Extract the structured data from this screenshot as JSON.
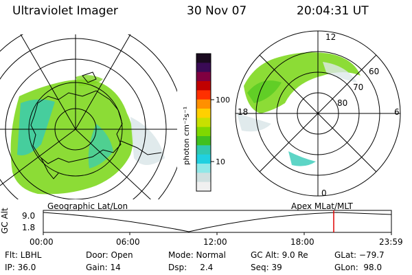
{
  "header": {
    "instrument": "Ultraviolet Imager",
    "date": "30 Nov 07",
    "time": "20:04:31 UT"
  },
  "colorbar": {
    "unit_label": "photon cm⁻²s⁻¹",
    "ticks": [
      "100",
      "10"
    ],
    "colors": [
      "#1a0a1f",
      "#3a0a55",
      "#800040",
      "#c00000",
      "#ff3000",
      "#ff9000",
      "#ffd000",
      "#c8e000",
      "#80d800",
      "#40c020",
      "#30c8b0",
      "#20d0e0",
      "#90e8e8",
      "#d0e0e0",
      "#f0f0f0"
    ]
  },
  "left_panel": {
    "label": "Geographic Lat/Lon"
  },
  "right_panel": {
    "label": "Apex MLat/MLT",
    "mlt_labels": {
      "top": "12",
      "left": "18",
      "right": "6",
      "bottom": "0"
    },
    "mlat_labels": [
      "60",
      "70",
      "80"
    ]
  },
  "altitude_plot": {
    "ylabel": "GC Alt",
    "yticks": [
      "9.0",
      "1.8"
    ],
    "xticks": [
      "00:00",
      "06:00",
      "12:00",
      "18:00",
      "23:59"
    ],
    "marker_color": "#e00000"
  },
  "info": {
    "row1": {
      "filter": "Flt: LBHL",
      "door": "Door: Open",
      "mode": "Mode: Normal",
      "gc_alt": "GC Alt: 9.0 Re",
      "glat": "GLat: −79.7"
    },
    "row2": {
      "ip": "IP: 36.0",
      "gain": "Gain: 14",
      "dsp": "Dsp:     2.4",
      "seq": "Seq: 39",
      "glon": "GLon:  98.0"
    }
  }
}
